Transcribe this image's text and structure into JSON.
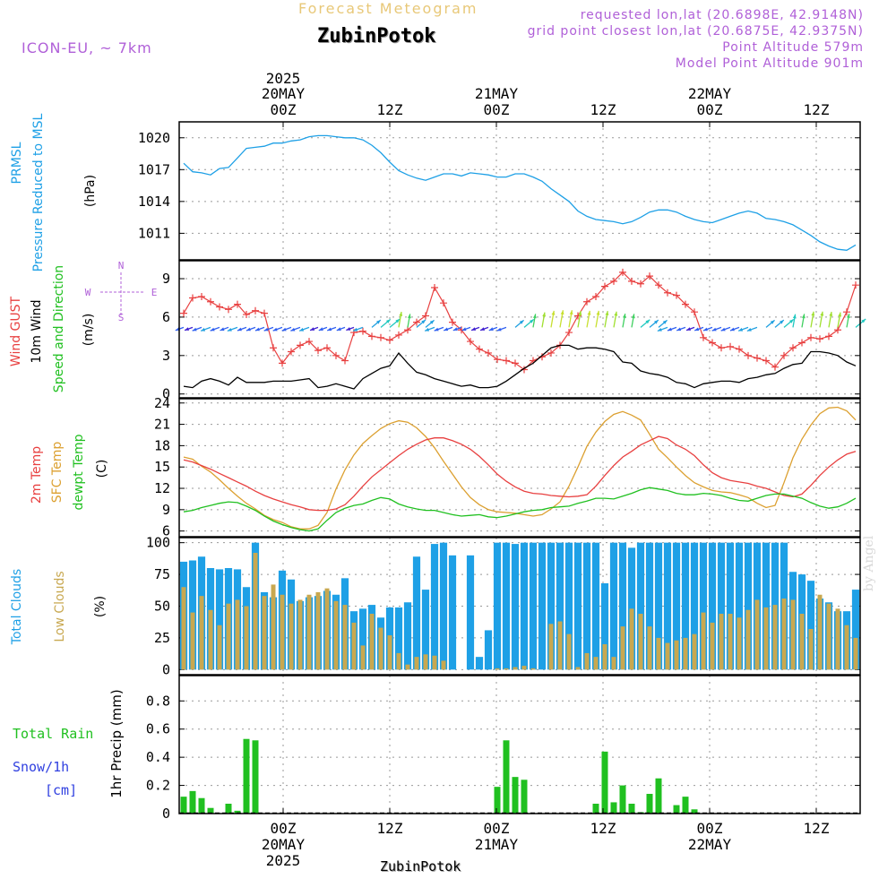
{
  "header": {
    "title": "Forecast Meteogram",
    "station": "ZubinPotok",
    "model": "ICON-EU, ~ 7km",
    "requested": "requested lon,lat (20.6898E, 42.9148N)",
    "closest": "grid point closest lon,lat (20.6875E, 42.9375N)",
    "point_altitude": "Point Altitude 579m",
    "model_altitude": "Model Point Altitude 901m"
  },
  "footer": {
    "station": "ZubinPotok",
    "credit": "by Angel"
  },
  "colors": {
    "pressure": "#1ea0e6",
    "gust": "#e84040",
    "wind": "#000000",
    "t2m": "#e84040",
    "sfc": "#dca030",
    "dewpt": "#20c020",
    "total_clouds": "#1ea0e6",
    "low_clouds": "#c8a850",
    "rain": "#20c020",
    "snow": "#3040e0",
    "direction": "#b060d8"
  },
  "chart_data": [
    {
      "type": "line",
      "title": "",
      "ylabel_lines": [
        "PRMSL",
        "Pressure Reduced to MSL"
      ],
      "unit": "(hPa)",
      "yticks": [
        1011,
        1014,
        1017,
        1020
      ],
      "ylim": [
        1008.5,
        1021.5
      ],
      "x_hours": [
        1,
        2,
        3,
        4,
        5,
        6,
        7,
        8,
        9,
        10,
        11,
        12,
        13,
        14,
        15,
        16,
        17,
        18,
        19,
        20,
        21,
        22,
        23,
        24,
        25,
        26,
        27,
        28,
        29,
        30,
        31,
        32,
        33,
        34,
        35,
        36,
        37,
        38,
        39,
        40,
        41,
        42,
        43,
        44,
        45,
        46,
        47,
        48,
        49,
        50,
        51,
        52,
        53,
        54,
        55,
        56,
        57,
        58,
        59,
        60,
        61,
        62,
        63,
        64,
        65,
        66,
        67,
        68,
        69,
        70,
        71,
        72,
        73,
        74,
        75,
        76
      ],
      "series": [
        {
          "name": "PRMSL",
          "values": [
            1017.6,
            1016.8,
            1016.7,
            1016.5,
            1017.1,
            1017.2,
            1018.1,
            1019.0,
            1019.1,
            1019.2,
            1019.5,
            1019.5,
            1019.7,
            1019.8,
            1020.1,
            1020.2,
            1020.2,
            1020.1,
            1020.0,
            1020.0,
            1019.8,
            1019.3,
            1018.6,
            1017.7,
            1016.9,
            1016.5,
            1016.2,
            1016.0,
            1016.3,
            1016.6,
            1016.6,
            1016.4,
            1016.7,
            1016.6,
            1016.5,
            1016.3,
            1016.3,
            1016.6,
            1016.6,
            1016.3,
            1015.9,
            1015.2,
            1014.6,
            1014.0,
            1013.1,
            1012.6,
            1012.3,
            1012.2,
            1012.1,
            1011.9,
            1012.1,
            1012.5,
            1013.0,
            1013.2,
            1013.2,
            1013.0,
            1012.6,
            1012.3,
            1012.1,
            1012.0,
            1012.3,
            1012.6,
            1012.9,
            1013.1,
            1012.9,
            1012.4,
            1012.3,
            1012.1,
            1011.8,
            1011.3,
            1010.8,
            1010.2,
            1009.8,
            1009.5,
            1009.4,
            1009.9
          ]
        }
      ]
    },
    {
      "type": "line",
      "title": "",
      "ylabel_lines": [
        "Wind GUST",
        "10m Wind",
        "Speed and Direction"
      ],
      "unit": "(m/s)",
      "compass": {
        "n": "N",
        "s": "S",
        "w": "W",
        "e": "E"
      },
      "yticks": [
        0,
        3,
        6,
        9
      ],
      "ylim": [
        -0.3,
        10.4
      ],
      "series": [
        {
          "name": "Wind GUST",
          "values": [
            6.3,
            7.5,
            7.6,
            7.2,
            6.8,
            6.6,
            7.0,
            6.2,
            6.5,
            6.3,
            3.6,
            2.4,
            3.3,
            3.8,
            4.1,
            3.4,
            3.6,
            3.0,
            2.6,
            4.8,
            4.9,
            4.5,
            4.4,
            4.2,
            4.6,
            5.0,
            5.6,
            6.1,
            8.3,
            7.1,
            5.6,
            5.0,
            4.1,
            3.5,
            3.2,
            2.7,
            2.6,
            2.4,
            1.9,
            2.6,
            2.9,
            3.2,
            3.8,
            4.8,
            6.1,
            7.2,
            7.6,
            8.4,
            8.8,
            9.5,
            8.8,
            8.6,
            9.2,
            8.5,
            7.9,
            7.7,
            7.0,
            6.4,
            4.4,
            4.0,
            3.6,
            3.7,
            3.5,
            3.0,
            2.8,
            2.6,
            2.1,
            3.0,
            3.6,
            4.0,
            4.4,
            4.3,
            4.5,
            5.0,
            6.4,
            8.5
          ]
        },
        {
          "name": "10m Wind",
          "values": [
            0.6,
            0.5,
            1.0,
            1.2,
            1.0,
            0.7,
            1.3,
            0.9,
            0.9,
            0.9,
            1.0,
            1.0,
            1.0,
            1.1,
            1.2,
            0.5,
            0.6,
            0.8,
            0.6,
            0.4,
            1.2,
            1.6,
            2.0,
            2.2,
            3.2,
            2.4,
            1.7,
            1.5,
            1.2,
            1.0,
            0.8,
            0.6,
            0.7,
            0.5,
            0.5,
            0.6,
            1.0,
            1.5,
            2.0,
            2.4,
            3.0,
            3.6,
            3.8,
            3.8,
            3.5,
            3.6,
            3.6,
            3.5,
            3.3,
            2.5,
            2.4,
            1.8,
            1.6,
            1.5,
            1.3,
            0.9,
            0.8,
            0.5,
            0.8,
            0.9,
            1.0,
            1.0,
            0.9,
            1.2,
            1.3,
            1.5,
            1.6,
            2.0,
            2.3,
            2.4,
            3.3,
            3.3,
            3.2,
            3.0,
            2.5,
            2.2
          ]
        }
      ]
    },
    {
      "type": "line",
      "title": "",
      "ylabel_lines": [
        "2m Temp",
        "SFC Temp",
        "dewpt Temp"
      ],
      "unit": "(C)",
      "yticks": [
        6,
        9,
        12,
        15,
        18,
        21,
        24
      ],
      "ylim": [
        5.2,
        24.6
      ],
      "series": [
        {
          "name": "2m Temp",
          "values": [
            16.0,
            15.7,
            15.2,
            14.7,
            14.1,
            13.5,
            12.9,
            12.3,
            11.6,
            11.0,
            10.5,
            10.1,
            9.7,
            9.4,
            9.0,
            8.9,
            8.9,
            9.1,
            9.7,
            10.9,
            12.3,
            13.6,
            14.6,
            15.6,
            16.6,
            17.5,
            18.2,
            18.8,
            19.1,
            19.1,
            18.7,
            18.2,
            17.5,
            16.5,
            15.3,
            14.0,
            13.0,
            12.2,
            11.6,
            11.3,
            11.2,
            11.0,
            10.9,
            10.8,
            10.9,
            11.1,
            12.3,
            13.8,
            15.2,
            16.4,
            17.2,
            18.1,
            18.7,
            19.3,
            19.0,
            18.1,
            17.5,
            16.6,
            15.3,
            14.2,
            13.5,
            13.1,
            12.9,
            12.7,
            12.3,
            12.0,
            11.5,
            11.0,
            10.8,
            11.2,
            12.4,
            13.8,
            15.0,
            16.0,
            16.8,
            17.2
          ]
        },
        {
          "name": "SFC Temp",
          "values": [
            16.4,
            16.1,
            15.1,
            14.3,
            13.2,
            12.0,
            10.9,
            9.9,
            9.1,
            8.2,
            7.6,
            7.2,
            6.6,
            6.3,
            6.3,
            6.8,
            8.6,
            11.9,
            14.6,
            16.7,
            18.3,
            19.4,
            20.4,
            21.1,
            21.5,
            21.3,
            20.5,
            19.3,
            17.7,
            15.8,
            14.0,
            12.2,
            10.7,
            9.7,
            9.0,
            8.7,
            8.6,
            8.5,
            8.3,
            8.1,
            8.3,
            9.1,
            10.1,
            12.3,
            15.0,
            17.9,
            19.9,
            21.4,
            22.4,
            22.8,
            22.3,
            21.6,
            19.6,
            17.5,
            16.3,
            15.0,
            13.8,
            12.8,
            12.2,
            11.7,
            11.5,
            11.4,
            11.1,
            10.7,
            9.9,
            9.3,
            9.6,
            12.8,
            16.3,
            18.9,
            20.9,
            22.5,
            23.3,
            23.4,
            22.9,
            21.6
          ]
        },
        {
          "name": "dewpt Temp",
          "values": [
            8.7,
            8.9,
            9.3,
            9.6,
            9.9,
            10.1,
            10.0,
            9.5,
            8.9,
            8.1,
            7.4,
            6.9,
            6.5,
            6.2,
            6.0,
            6.3,
            7.5,
            8.6,
            9.2,
            9.6,
            9.8,
            10.3,
            10.7,
            10.5,
            9.8,
            9.4,
            9.1,
            8.9,
            8.9,
            8.6,
            8.3,
            8.1,
            8.2,
            8.3,
            8.0,
            7.9,
            8.1,
            8.4,
            8.7,
            8.9,
            9.0,
            9.3,
            9.4,
            9.5,
            9.9,
            10.2,
            10.6,
            10.6,
            10.5,
            10.9,
            11.3,
            11.8,
            12.1,
            11.9,
            11.7,
            11.3,
            11.1,
            11.1,
            11.3,
            11.2,
            11.0,
            10.6,
            10.3,
            10.2,
            10.6,
            11.0,
            11.2,
            11.2,
            10.9,
            10.6,
            10.0,
            9.5,
            9.2,
            9.4,
            9.9,
            10.6
          ]
        }
      ]
    },
    {
      "type": "bar",
      "title": "",
      "ylabel_lines": [
        "Total Clouds",
        "Low Clouds"
      ],
      "unit": "(%)",
      "yticks": [
        0,
        25,
        50,
        75,
        100
      ],
      "ylim": [
        -4,
        104
      ],
      "series": [
        {
          "name": "Total Clouds",
          "values": [
            85,
            86,
            89,
            80,
            79,
            80,
            79,
            65,
            100,
            61,
            57,
            78,
            71,
            54,
            57,
            58,
            62,
            59,
            72,
            46,
            48,
            51,
            41,
            49,
            49,
            53,
            89,
            63,
            99,
            100,
            90,
            0,
            90,
            10,
            31,
            100,
            100,
            99,
            100,
            100,
            100,
            100,
            100,
            100,
            100,
            100,
            100,
            68,
            100,
            100,
            96,
            100,
            100,
            100,
            100,
            100,
            100,
            100,
            100,
            100,
            100,
            100,
            100,
            100,
            100,
            100,
            100,
            100,
            77,
            75,
            70,
            56,
            53,
            46,
            46,
            63
          ]
        },
        {
          "name": "Low Clouds",
          "values": [
            65,
            45,
            58,
            47,
            35,
            52,
            55,
            50,
            92,
            58,
            67,
            59,
            52,
            55,
            59,
            61,
            64,
            54,
            51,
            37,
            19,
            44,
            33,
            27,
            13,
            4,
            10,
            12,
            11,
            7,
            0,
            0,
            0,
            0,
            0,
            1,
            1,
            2,
            3,
            1,
            0,
            36,
            38,
            28,
            2,
            13,
            10,
            20,
            10,
            34,
            48,
            44,
            34,
            25,
            21,
            23,
            25,
            28,
            45,
            37,
            44,
            44,
            41,
            47,
            55,
            49,
            51,
            56,
            55,
            44,
            32,
            59,
            52,
            48,
            35,
            25
          ]
        }
      ]
    },
    {
      "type": "bar",
      "title": "",
      "ylabel_lines": [
        "Total Rain",
        "Snow/1h",
        "[cm]"
      ],
      "ylabel_right": "1hr Precip (mm)",
      "yticks": [
        0,
        0.2,
        0.4,
        0.6,
        0.8
      ],
      "ylim": [
        0,
        0.98
      ],
      "series": [
        {
          "name": "Total Rain",
          "values": [
            0.12,
            0.16,
            0.11,
            0.04,
            0.0,
            0.07,
            0.02,
            0.53,
            0.52,
            0,
            0,
            0,
            0,
            0,
            0,
            0,
            0,
            0,
            0,
            0,
            0,
            0,
            0,
            0,
            0,
            0,
            0,
            0,
            0,
            0,
            0,
            0,
            0,
            0,
            0,
            0.19,
            0.52,
            0.26,
            0.24,
            0,
            0,
            0,
            0,
            0,
            0,
            0,
            0.07,
            0.44,
            0.08,
            0.2,
            0.07,
            0.01,
            0.14,
            0.25,
            0.0,
            0.06,
            0.12,
            0.03,
            0,
            0,
            0,
            0,
            0,
            0,
            0,
            0,
            0,
            0,
            0,
            0,
            0,
            0,
            0,
            0,
            0,
            0
          ]
        }
      ]
    }
  ],
  "time_axis": {
    "top": [
      {
        "l1": "2025",
        "l2": "20MAY",
        "l3": "00Z"
      },
      {
        "l1": "",
        "l2": "",
        "l3": "12Z"
      },
      {
        "l1": "",
        "l2": "21MAY",
        "l3": "00Z"
      },
      {
        "l1": "",
        "l2": "",
        "l3": "12Z"
      },
      {
        "l1": "",
        "l2": "22MAY",
        "l3": "00Z"
      },
      {
        "l1": "",
        "l2": "",
        "l3": "12Z"
      }
    ],
    "bottom": [
      {
        "l1": "00Z",
        "l2": "20MAY",
        "l3": "2025"
      },
      {
        "l1": "12Z",
        "l2": "",
        "l3": ""
      },
      {
        "l1": "00Z",
        "l2": "21MAY",
        "l3": ""
      },
      {
        "l1": "12Z",
        "l2": "",
        "l3": ""
      },
      {
        "l1": "00Z",
        "l2": "22MAY",
        "l3": ""
      },
      {
        "l1": "12Z",
        "l2": "",
        "l3": ""
      }
    ]
  }
}
